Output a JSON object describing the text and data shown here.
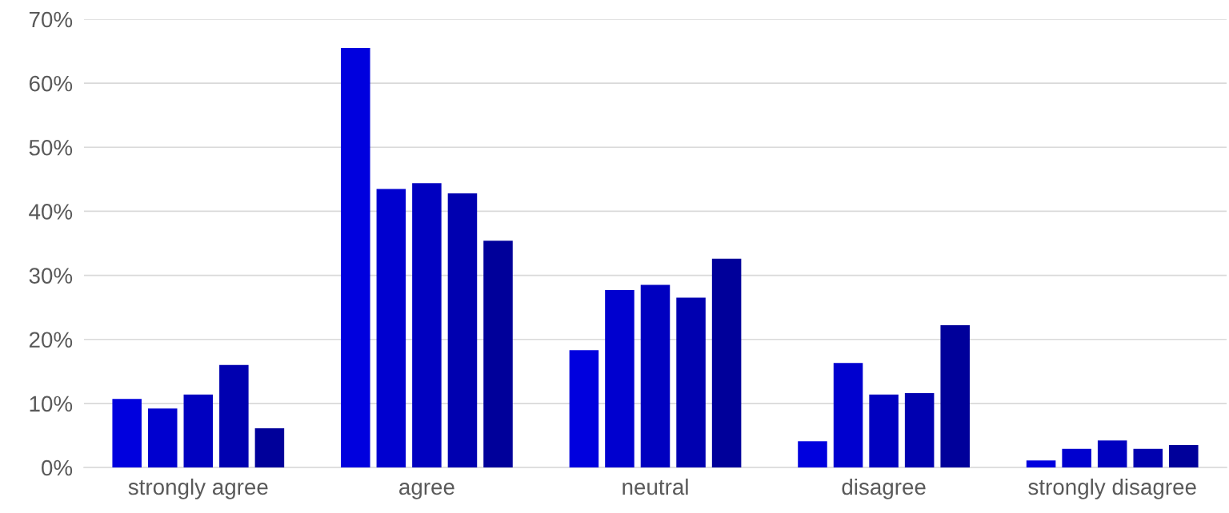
{
  "chart_data": {
    "type": "bar",
    "categories": [
      "strongly agree",
      "agree",
      "neutral",
      "disagree",
      "strongly disagree"
    ],
    "series": [
      {
        "color": "#0000de",
        "values": [
          10.7,
          65.5,
          18.3,
          4.1,
          1.1
        ]
      },
      {
        "color": "#0000cf",
        "values": [
          9.2,
          43.5,
          27.7,
          16.3,
          2.9
        ]
      },
      {
        "color": "#0000c0",
        "values": [
          11.4,
          44.4,
          28.5,
          11.4,
          4.2
        ]
      },
      {
        "color": "#0000b0",
        "values": [
          16.0,
          42.8,
          26.5,
          11.6,
          2.9
        ]
      },
      {
        "color": "#00009a",
        "values": [
          6.1,
          35.4,
          32.6,
          22.2,
          3.5
        ]
      }
    ],
    "ylim": [
      0,
      70
    ],
    "yticks": [
      {
        "value": 0,
        "label": "0%"
      },
      {
        "value": 10,
        "label": "10%"
      },
      {
        "value": 20,
        "label": "20%"
      },
      {
        "value": 30,
        "label": "30%"
      },
      {
        "value": 40,
        "label": "40%"
      },
      {
        "value": 50,
        "label": "50%"
      },
      {
        "value": 60,
        "label": "60%"
      },
      {
        "value": 70,
        "label": "70%"
      }
    ],
    "grid": "y",
    "legend": false
  }
}
